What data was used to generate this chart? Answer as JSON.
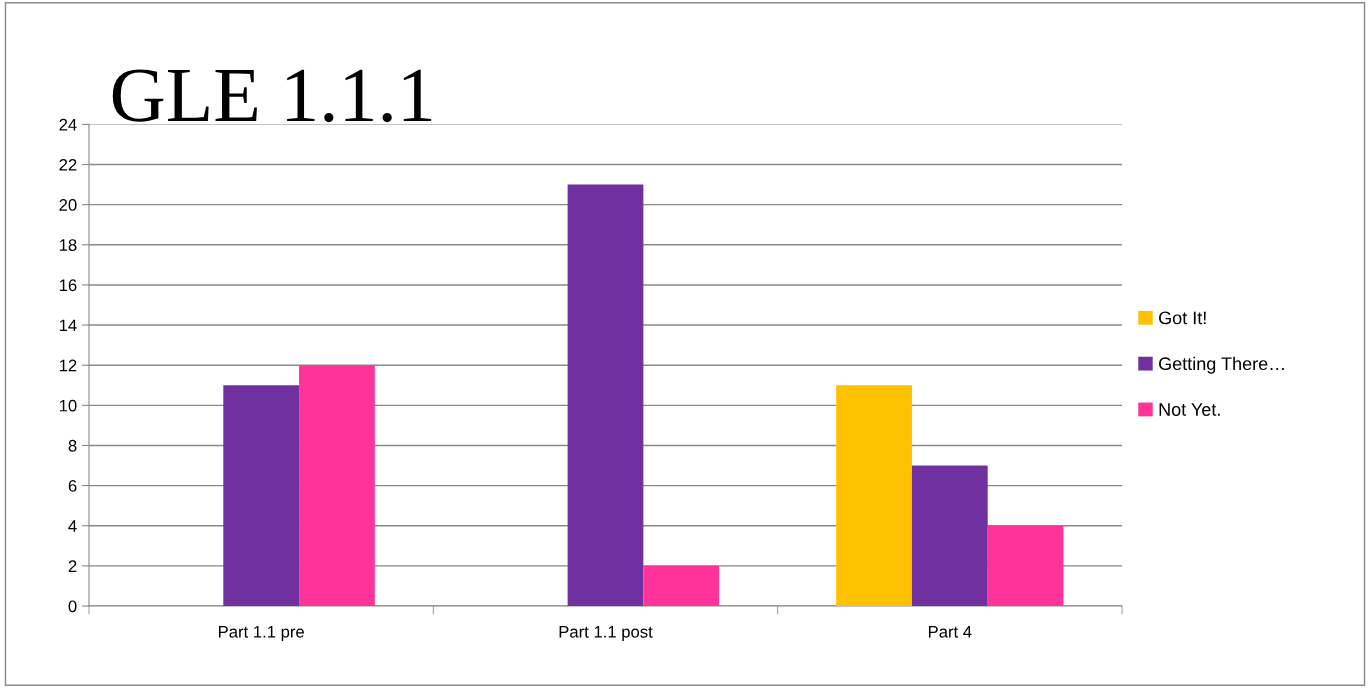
{
  "chart_data": {
    "type": "bar",
    "title": "GLE 1.1.1",
    "categories": [
      "Part 1.1 pre",
      "Part 1.1 post",
      "Part 4"
    ],
    "series": [
      {
        "name": "Got It!",
        "color": "#ffc000",
        "values": [
          0,
          0,
          11
        ]
      },
      {
        "name": "Getting There…",
        "color": "#7030a0",
        "values": [
          11,
          21,
          7
        ]
      },
      {
        "name": "Not Yet.",
        "color": "#ff3399",
        "values": [
          12,
          2,
          4
        ]
      }
    ],
    "ylim": [
      0,
      24
    ],
    "yticks": [
      0,
      2,
      4,
      6,
      8,
      10,
      12,
      14,
      16,
      18,
      20,
      22,
      24
    ],
    "grid": "y",
    "legend": "right"
  }
}
